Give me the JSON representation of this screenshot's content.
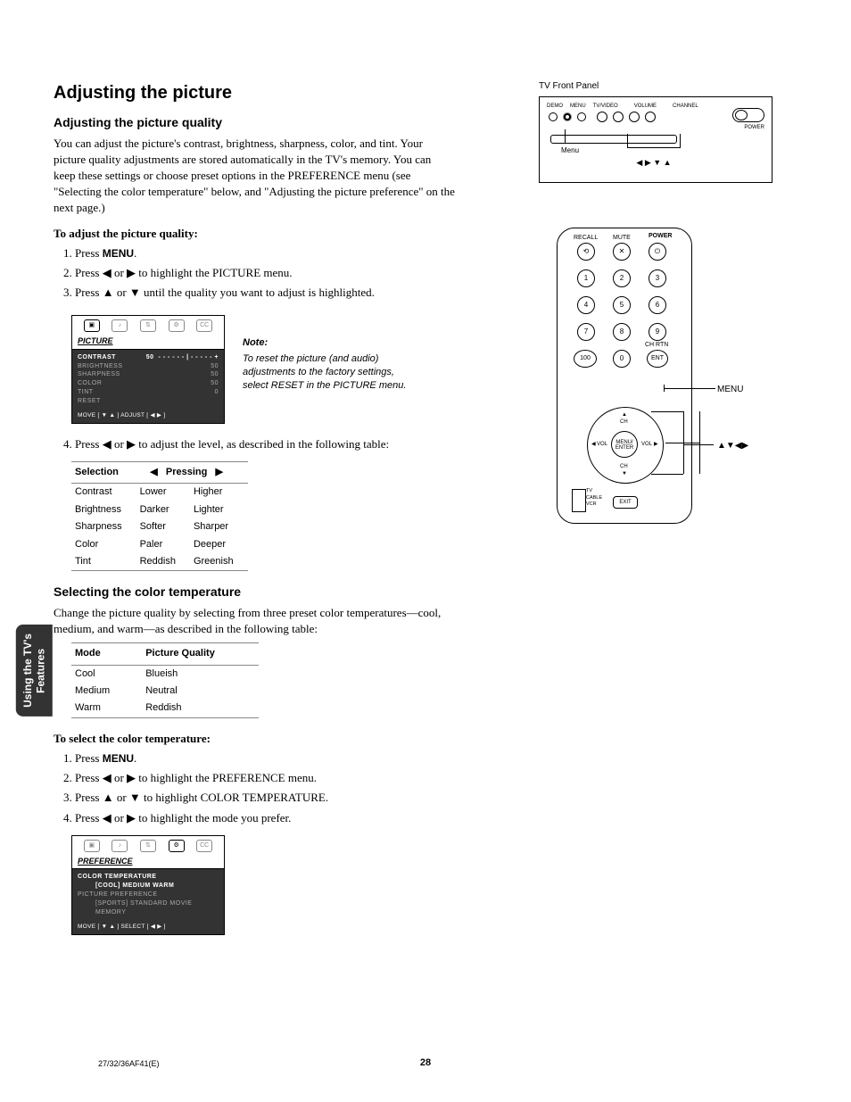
{
  "sideTab": "Using the TV's\nFeatures",
  "h1": "Adjusting the picture",
  "sec1": {
    "h2": "Adjusting the picture quality",
    "intro": "You can adjust the picture's contrast, brightness, sharpness, color, and tint. Your picture quality adjustments are stored automatically in the TV's memory. You can keep these settings or choose preset options in the PREFERENCE menu (see \"Selecting the color temperature\" below, and \"Adjusting the picture preference\" on the next page.)",
    "stepsTitle": "To adjust the picture quality:",
    "steps": {
      "s1a": "Press ",
      "s1b": "MENU",
      "s1c": ".",
      "s2": "Press ◀ or ▶ to highlight the PICTURE menu.",
      "s3": "Press ▲ or ▼ until the quality you want to adjust is highlighted.",
      "s4": "Press ◀ or ▶ to adjust the level, as described in the following table:"
    },
    "osd": {
      "title": "PICTURE",
      "rows": [
        {
          "label": "CONTRAST",
          "val": "50",
          "active": true
        },
        {
          "label": "BRIGHTNESS",
          "val": "50"
        },
        {
          "label": "SHARPNESS",
          "val": "50"
        },
        {
          "label": "COLOR",
          "val": "50"
        },
        {
          "label": "TINT",
          "val": "0"
        },
        {
          "label": "RESET",
          "val": ""
        }
      ],
      "footer": "MOVE [ ▼ ▲ ]    ADJUST [ ◀  ▶ ]"
    },
    "note": {
      "title": "Note:",
      "body": "To reset the picture (and audio) adjustments to the factory settings, select RESET in the PICTURE menu."
    },
    "table": {
      "h1": "Selection",
      "h2l": "◀",
      "h2": "Pressing",
      "h2r": "▶",
      "rows": [
        [
          "Contrast",
          "Lower",
          "Higher"
        ],
        [
          "Brightness",
          "Darker",
          "Lighter"
        ],
        [
          "Sharpness",
          "Softer",
          "Sharper"
        ],
        [
          "Color",
          "Paler",
          "Deeper"
        ],
        [
          "Tint",
          "Reddish",
          "Greenish"
        ]
      ]
    }
  },
  "sec2": {
    "h2": "Selecting the color temperature",
    "intro": "Change the picture quality by selecting from three preset color temperatures—cool, medium, and warm—as described in the following table:",
    "table": {
      "h1": "Mode",
      "h2": "Picture Quality",
      "rows": [
        [
          "Cool",
          "Blueish"
        ],
        [
          "Medium",
          "Neutral"
        ],
        [
          "Warm",
          "Reddish"
        ]
      ]
    },
    "stepsTitle": "To select the color temperature:",
    "steps": {
      "s1a": "Press ",
      "s1b": "MENU",
      "s1c": ".",
      "s2": "Press ◀ or ▶ to highlight the PREFERENCE menu.",
      "s3": "Press ▲ or ▼ to highlight COLOR TEMPERATURE.",
      "s4": "Press ◀ or ▶ to highlight the mode you prefer."
    },
    "osd": {
      "title": "PREFERENCE",
      "line1": "COLOR TEMPERATURE",
      "line1b": "[COOL]  MEDIUM  WARM",
      "line2": "PICTURE PREFERENCE",
      "line2b": "[SPORTS]  STANDARD  MOVIE  MEMORY",
      "footer": "MOVE [ ▼ ▲ ]    SELECT [ ◀  ▶ ]"
    }
  },
  "tvPanel": {
    "caption": "TV Front Panel",
    "labels": [
      "DEMO",
      "MENU",
      "TV/VIDEO",
      "VOLUME",
      "CHANNEL"
    ],
    "power": "POWER",
    "menu": "Menu",
    "arrows": "◀ ▶ ▼ ▲"
  },
  "remote": {
    "topLabels": {
      "recall": "RECALL",
      "mute": "MUTE",
      "power": "POWER"
    },
    "nums": [
      "1",
      "2",
      "3",
      "4",
      "5",
      "6",
      "7",
      "8",
      "9",
      "100",
      "0",
      "ENT"
    ],
    "chrtn": "CH RTN",
    "dpad": {
      "up": "▲",
      "down": "▼",
      "left": "◀",
      "right": "▶",
      "ch": "CH",
      "vol": "VOL",
      "center": "MENU/\nENTER"
    },
    "switch": [
      "TV",
      "CABLE",
      "VCR"
    ],
    "exit": "EXIT",
    "callouts": {
      "menu": "MENU",
      "arrows": "▲▼◀▶"
    }
  },
  "footer": {
    "doc": "27/32/36AF41(E)",
    "page": "28"
  }
}
